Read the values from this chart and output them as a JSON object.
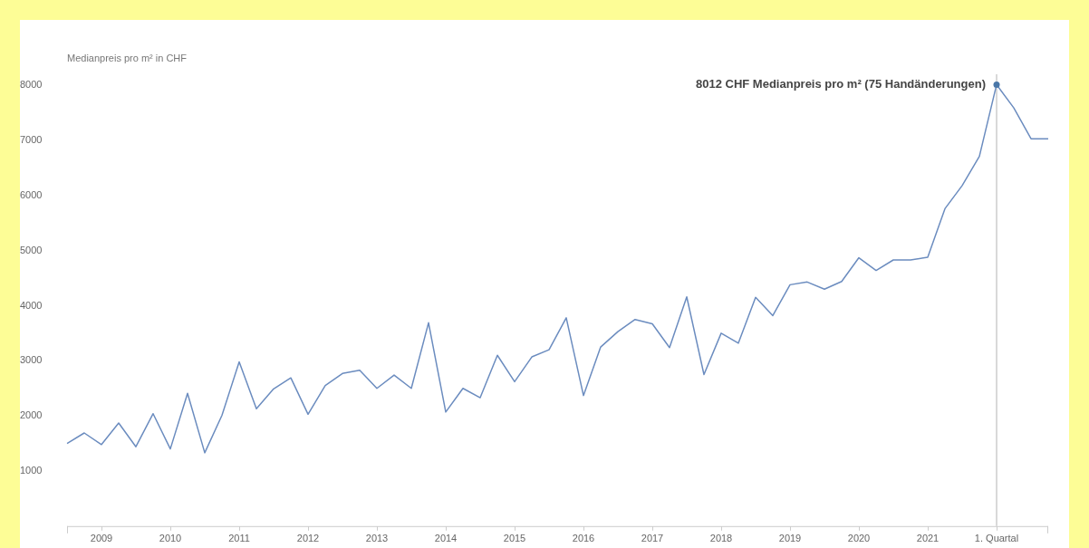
{
  "chart_data": {
    "type": "line",
    "ylabel": "Medianpreis pro m² in CHF",
    "categories": [
      null,
      null,
      "2009",
      null,
      null,
      null,
      "2010",
      null,
      null,
      null,
      "2011",
      null,
      null,
      null,
      "2012",
      null,
      null,
      null,
      "2013",
      null,
      null,
      null,
      "2014",
      null,
      null,
      null,
      "2015",
      null,
      null,
      null,
      "2016",
      null,
      null,
      null,
      "2017",
      null,
      null,
      null,
      "2018",
      null,
      null,
      null,
      "2019",
      null,
      null,
      null,
      "2020",
      null,
      null,
      null,
      "2021",
      null,
      null,
      null,
      "1. Quartal",
      null,
      null,
      null
    ],
    "series": [
      {
        "color": "#6b8cbf",
        "values": [
          1500,
          1690,
          1480,
          1870,
          1440,
          2040,
          1400,
          2410,
          1330,
          2010,
          2980,
          2130,
          2490,
          2690,
          2030,
          2550,
          2770,
          2830,
          2500,
          2740,
          2500,
          3690,
          2070,
          2500,
          2330,
          3100,
          2620,
          3070,
          3200,
          3780,
          2370,
          3250,
          3530,
          3750,
          3670,
          3240,
          4160,
          2750,
          3500,
          3320,
          4150,
          3820,
          4380,
          4430,
          4300,
          4440,
          4870,
          4640,
          4830,
          4830,
          4880,
          5760,
          6180,
          6710,
          8012,
          7590,
          7030,
          7030
        ]
      }
    ],
    "ylim": [
      0,
      8200
    ],
    "yticks": [
      1000,
      2000,
      3000,
      4000,
      5000,
      6000,
      7000,
      8000
    ],
    "grid": false,
    "legend": false,
    "marker": "none",
    "line_style": "solid",
    "ref_lines": [
      {
        "axis": "x",
        "value": "1. Quartal",
        "color": "#cccccc"
      }
    ],
    "annotations": [
      {
        "text": "8012 CHF Medianpreis pro m² (75 Handänderungen)",
        "x": "1. Quartal",
        "y": 8012
      }
    ]
  }
}
